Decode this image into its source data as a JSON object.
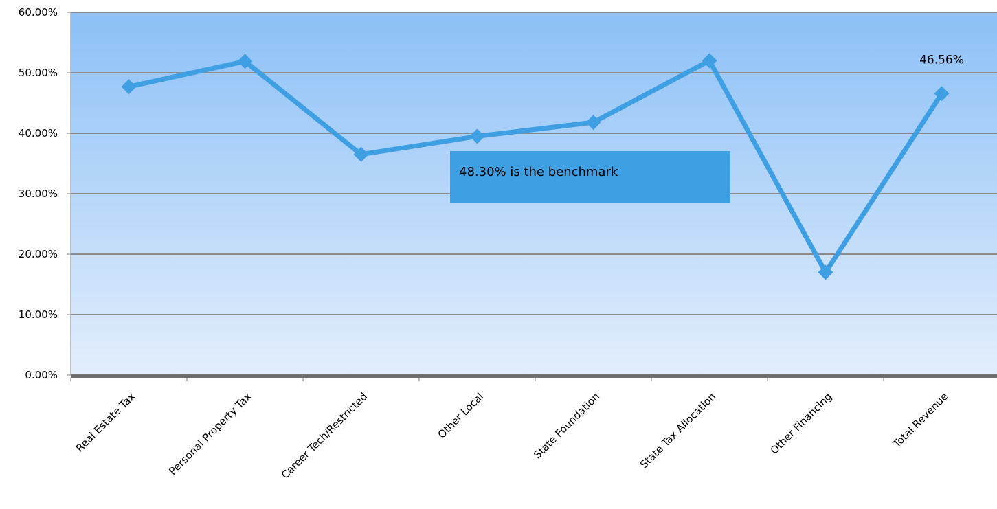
{
  "chart_data": {
    "type": "line",
    "categories": [
      "Real Estate Tax",
      "Personal Property Tax",
      "Career Tech/Restricted",
      "Other Local",
      "State Foundation",
      "State Tax Allocation",
      "Other Financing",
      "Total Revenue"
    ],
    "series": [
      {
        "values": [
          47.7,
          51.9,
          36.5,
          39.5,
          41.8,
          52.0,
          17.0,
          46.56
        ]
      }
    ],
    "y_ticks": [
      "0.00%",
      "10.00%",
      "20.00%",
      "30.00%",
      "40.00%",
      "50.00%",
      "60.00%"
    ],
    "ylim": [
      0,
      60
    ],
    "y_format": "percent",
    "grid": true,
    "data_labels": [
      {
        "category": "Total Revenue",
        "text": "46.56%"
      }
    ],
    "annotation": {
      "text": "48.30% is the benchmark"
    },
    "colors": {
      "line": "#3f9fe3",
      "marker": "#3f9fe3",
      "plot_top": "#8cc0f7",
      "plot_bottom": "#e3eefc",
      "gridline": "#8a8a8a",
      "callout_fill": "#3f9fe3"
    }
  }
}
